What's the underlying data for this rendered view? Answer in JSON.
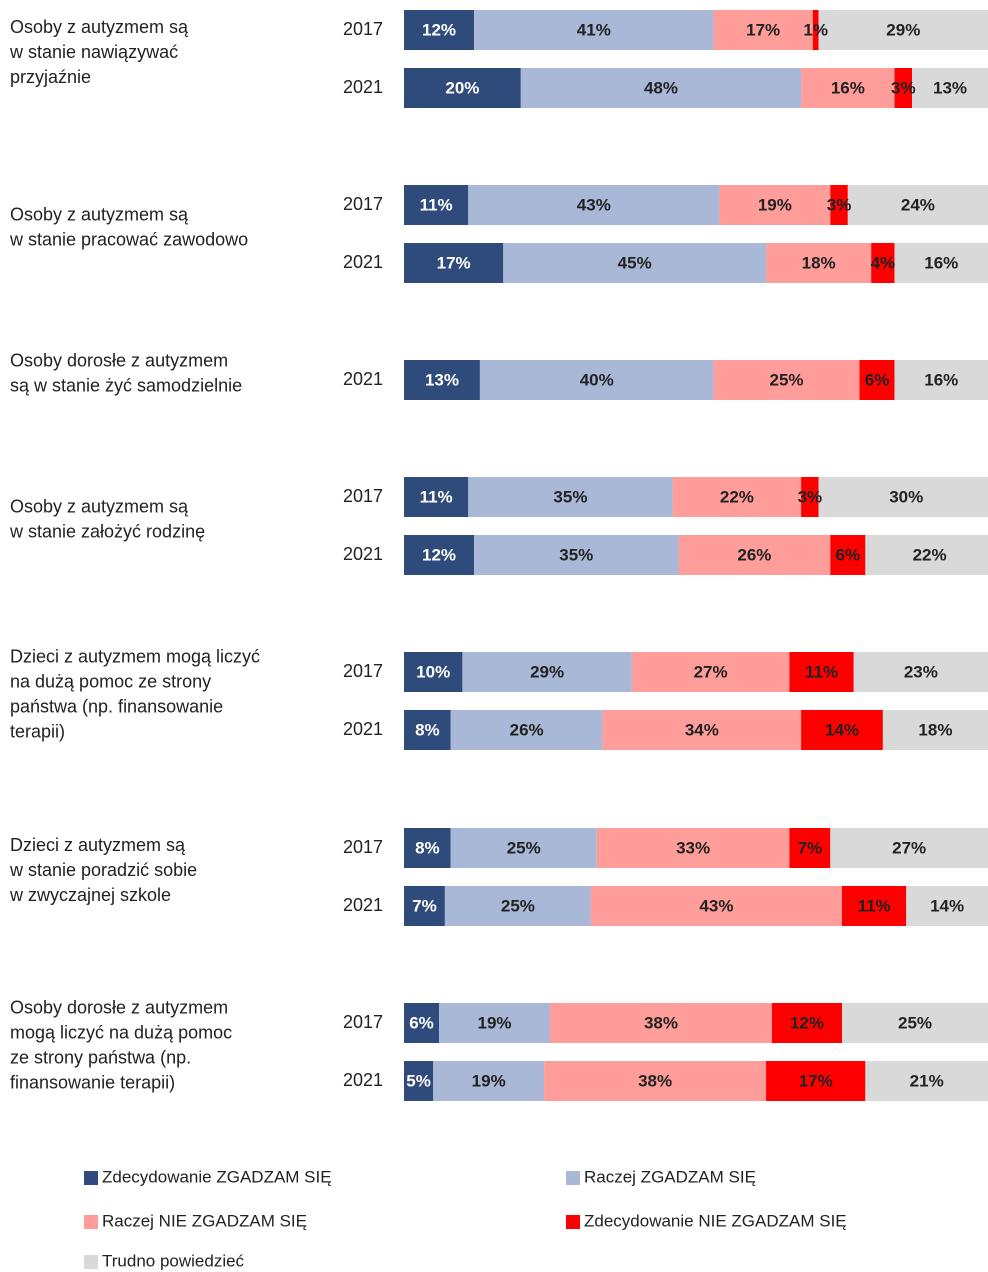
{
  "chart_data": {
    "type": "bar",
    "orientation": "horizontal",
    "stacked": true,
    "xlim": [
      0,
      100
    ],
    "series": [
      {
        "name": "Zdecydowanie ZGADZAM SIĘ",
        "color": "#2f4b7c",
        "label_color": "#ffffff"
      },
      {
        "name": "Raczej ZGADZAM SIĘ",
        "color": "#a9b8d6",
        "label_color": "#222222"
      },
      {
        "name": "Raczej NIE ZGADZAM SIĘ",
        "color": "#ff9d9a",
        "label_color": "#222222"
      },
      {
        "name": "Zdecydowanie NIE ZGADZAM SIĘ",
        "color": "#ff0000",
        "label_color": "#222222"
      },
      {
        "name": "Trudno powiedzieć",
        "color": "#d9d9d9",
        "label_color": "#222222"
      }
    ],
    "groups": [
      {
        "label": [
          "Osoby z autyzmem są",
          "w stanie nawiązywać",
          "przyjaźnie"
        ],
        "rows": [
          {
            "category": "2017",
            "values": [
              12,
              41,
              17,
              1,
              29
            ],
            "value_labels": [
              "12%",
              "41%",
              "17%",
              "1%",
              "29%"
            ]
          },
          {
            "category": "2021",
            "values": [
              20,
              48,
              16,
              3,
              13
            ],
            "value_labels": [
              "20%",
              "48%",
              "16%",
              "3%",
              "13%"
            ]
          }
        ]
      },
      {
        "label": [
          "Osoby z autyzmem są",
          "w stanie pracować zawodowo"
        ],
        "rows": [
          {
            "category": "2017",
            "values": [
              11,
              43,
              19,
              3,
              24
            ],
            "value_labels": [
              "11%",
              "43%",
              "19%",
              "3%",
              "24%"
            ]
          },
          {
            "category": "2021",
            "values": [
              17,
              45,
              18,
              4,
              16
            ],
            "value_labels": [
              "17%",
              "45%",
              "18%",
              "4%",
              "16%"
            ]
          }
        ]
      },
      {
        "label": [
          "Osoby dorosłe z autyzmem",
          "są w stanie żyć samodzielnie"
        ],
        "rows": [
          {
            "category": "2021",
            "values": [
              13,
              40,
              25,
              6,
              16
            ],
            "value_labels": [
              "13%",
              "40%",
              "25%",
              "6%",
              "16%"
            ]
          }
        ]
      },
      {
        "label": [
          "Osoby z autyzmem są",
          "w stanie założyć rodzinę"
        ],
        "rows": [
          {
            "category": "2017",
            "values": [
              11,
              35,
              22,
              3,
              30
            ],
            "value_labels": [
              "11%",
              "35%",
              "22%",
              "3%",
              "30%"
            ]
          },
          {
            "category": "2021",
            "values": [
              12,
              35,
              26,
              6,
              22
            ],
            "value_labels": [
              "12%",
              "35%",
              "26%",
              "6%",
              "22%"
            ]
          }
        ]
      },
      {
        "label": [
          "Dzieci z autyzmem mogą liczyć",
          "na dużą pomoc ze strony",
          "państwa (np. finansowanie",
          "terapii)"
        ],
        "rows": [
          {
            "category": "2017",
            "values": [
              10,
              29,
              27,
              11,
              23
            ],
            "value_labels": [
              "10%",
              "29%",
              "27%",
              "11%",
              "23%"
            ]
          },
          {
            "category": "2021",
            "values": [
              8,
              26,
              34,
              14,
              18
            ],
            "value_labels": [
              "8%",
              "26%",
              "34%",
              "14%",
              "18%"
            ]
          }
        ]
      },
      {
        "label": [
          "Dzieci z autyzmem są",
          "w stanie poradzić sobie",
          "w zwyczajnej szkole"
        ],
        "rows": [
          {
            "category": "2017",
            "values": [
              8,
              25,
              33,
              7,
              27
            ],
            "value_labels": [
              "8%",
              "25%",
              "33%",
              "7%",
              "27%"
            ]
          },
          {
            "category": "2021",
            "values": [
              7,
              25,
              43,
              11,
              14
            ],
            "value_labels": [
              "7%",
              "25%",
              "43%",
              "11%",
              "14%"
            ]
          }
        ]
      },
      {
        "label": [
          "Osoby dorosłe z autyzmem",
          "mogą liczyć na dużą pomoc",
          "ze strony państwa (np.",
          "finansowanie terapii)"
        ],
        "rows": [
          {
            "category": "2017",
            "values": [
              6,
              19,
              38,
              12,
              25
            ],
            "value_labels": [
              "6%",
              "19%",
              "38%",
              "12%",
              "25%"
            ]
          },
          {
            "category": "2021",
            "values": [
              5,
              19,
              38,
              17,
              21
            ],
            "value_labels": [
              "5%",
              "19%",
              "38%",
              "17%",
              "21%"
            ]
          }
        ]
      }
    ]
  }
}
